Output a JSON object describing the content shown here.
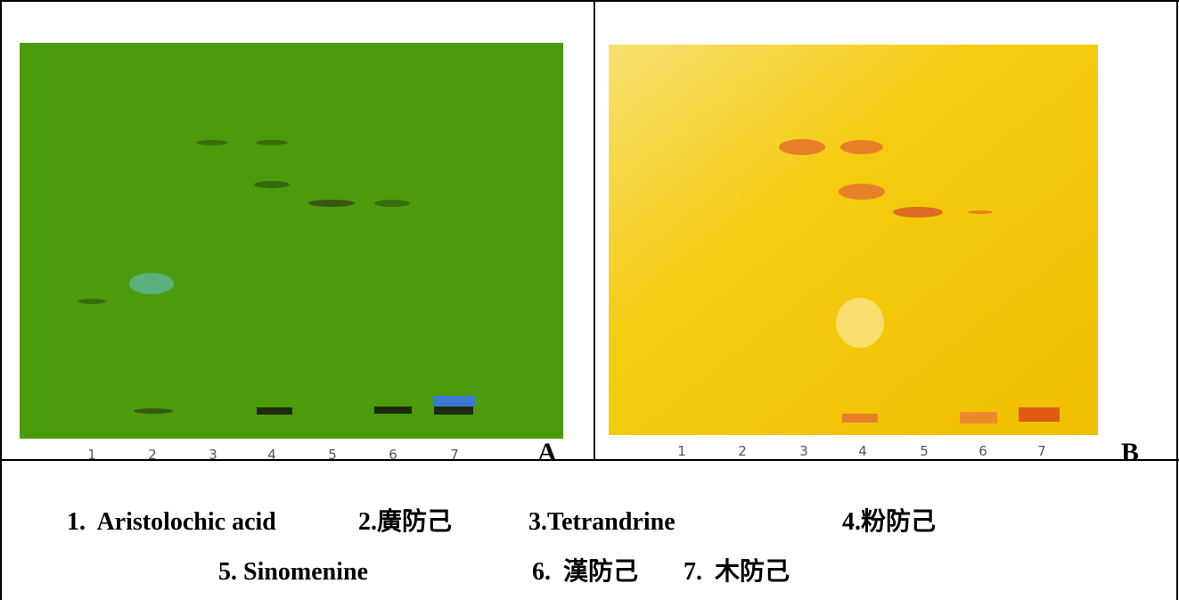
{
  "panels": [
    {
      "letter": "A",
      "lanes": [
        "1",
        "2",
        "3",
        "4",
        "5",
        "6",
        "7"
      ]
    },
    {
      "letter": "B",
      "lanes": [
        "1",
        "2",
        "3",
        "4",
        "5",
        "6",
        "7"
      ]
    }
  ],
  "legend": {
    "line1": [
      "1.  Aristolochic acid",
      "2.廣防己",
      "3.Tetrandrine",
      "4.粉防己"
    ],
    "line2": [
      "5. Sinomenine",
      "6.  漢防己",
      "7.  木防己"
    ]
  }
}
